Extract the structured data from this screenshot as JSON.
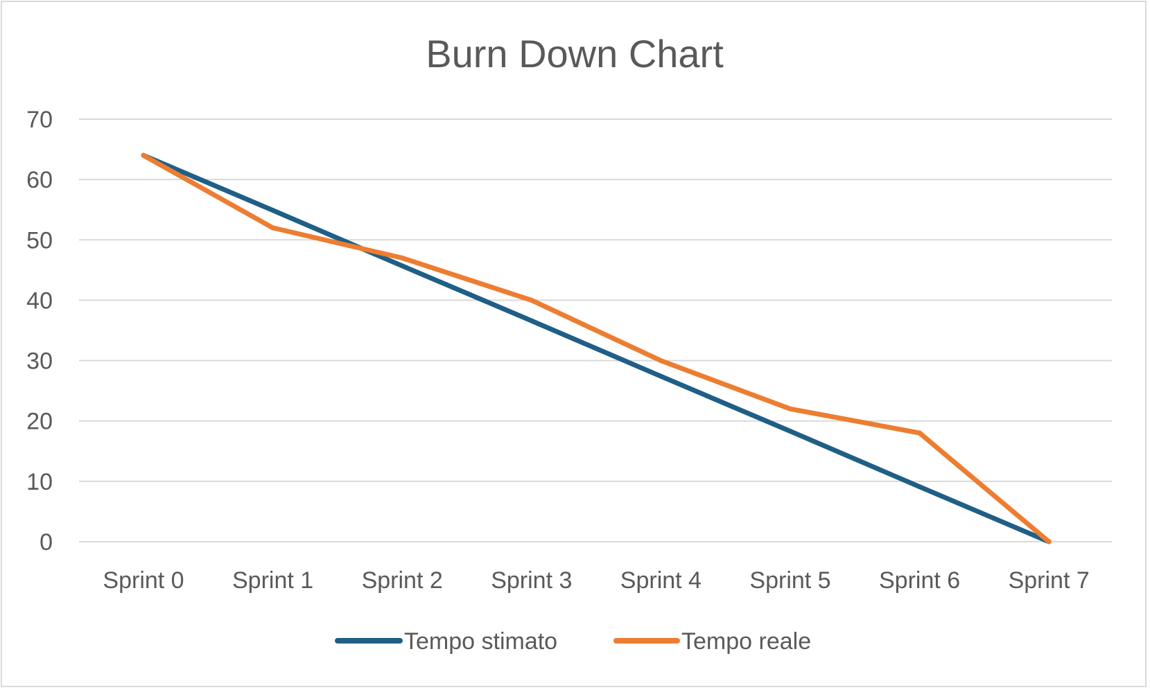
{
  "chart_data": {
    "type": "line",
    "title": "Burn Down Chart",
    "xlabel": "",
    "ylabel": "",
    "categories": [
      "Sprint 0",
      "Sprint 1",
      "Sprint 2",
      "Sprint 3",
      "Sprint 4",
      "Sprint 5",
      "Sprint 6",
      "Sprint 7"
    ],
    "ylim": [
      0,
      70
    ],
    "yticks": [
      0,
      10,
      20,
      30,
      40,
      50,
      60,
      70
    ],
    "grid": true,
    "legend_position": "bottom",
    "series": [
      {
        "name": "Tempo stimato",
        "color": "#1f5f86",
        "values": [
          64,
          54.9,
          45.7,
          36.6,
          27.4,
          18.3,
          9.1,
          0
        ]
      },
      {
        "name": "Tempo reale",
        "color": "#ed7d31",
        "values": [
          64,
          52,
          47,
          40,
          30,
          22,
          18,
          0
        ]
      }
    ]
  }
}
